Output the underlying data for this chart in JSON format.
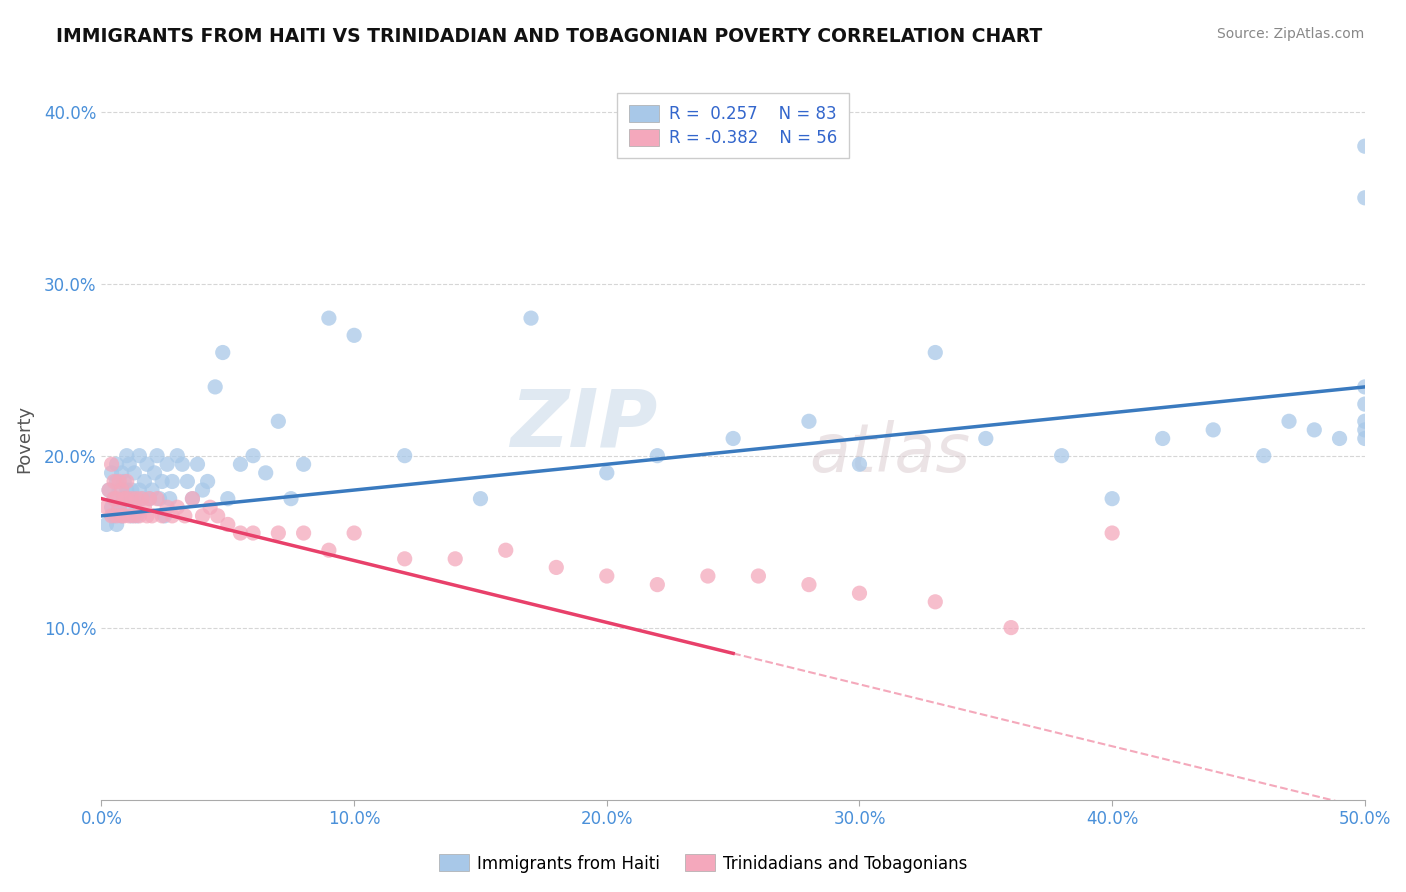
{
  "title": "IMMIGRANTS FROM HAITI VS TRINIDADIAN AND TOBAGONIAN POVERTY CORRELATION CHART",
  "source": "Source: ZipAtlas.com",
  "ylabel": "Poverty",
  "xlim": [
    0.0,
    0.5
  ],
  "ylim": [
    0.0,
    0.42
  ],
  "watermark": "ZIPatlas",
  "blue_color": "#a8c8e8",
  "pink_color": "#f4a8bc",
  "blue_line_color": "#3a7abf",
  "pink_line_color": "#e8406a",
  "haiti_x": [
    0.002,
    0.003,
    0.004,
    0.004,
    0.005,
    0.005,
    0.006,
    0.006,
    0.006,
    0.007,
    0.007,
    0.008,
    0.008,
    0.009,
    0.009,
    0.01,
    0.01,
    0.01,
    0.011,
    0.011,
    0.012,
    0.012,
    0.013,
    0.013,
    0.014,
    0.015,
    0.015,
    0.016,
    0.017,
    0.018,
    0.019,
    0.02,
    0.021,
    0.022,
    0.023,
    0.024,
    0.025,
    0.026,
    0.027,
    0.028,
    0.03,
    0.032,
    0.034,
    0.036,
    0.038,
    0.04,
    0.042,
    0.045,
    0.048,
    0.05,
    0.055,
    0.06,
    0.065,
    0.07,
    0.075,
    0.08,
    0.09,
    0.1,
    0.12,
    0.15,
    0.17,
    0.2,
    0.22,
    0.25,
    0.28,
    0.3,
    0.33,
    0.35,
    0.38,
    0.4,
    0.42,
    0.44,
    0.46,
    0.47,
    0.48,
    0.49,
    0.5,
    0.5,
    0.5,
    0.5,
    0.5,
    0.5,
    0.5
  ],
  "haiti_y": [
    0.16,
    0.18,
    0.17,
    0.19,
    0.175,
    0.165,
    0.16,
    0.185,
    0.195,
    0.17,
    0.18,
    0.165,
    0.19,
    0.175,
    0.185,
    0.17,
    0.18,
    0.2,
    0.175,
    0.195,
    0.18,
    0.165,
    0.175,
    0.19,
    0.165,
    0.18,
    0.2,
    0.175,
    0.185,
    0.195,
    0.175,
    0.18,
    0.19,
    0.2,
    0.175,
    0.185,
    0.165,
    0.195,
    0.175,
    0.185,
    0.2,
    0.195,
    0.185,
    0.175,
    0.195,
    0.18,
    0.185,
    0.24,
    0.26,
    0.175,
    0.195,
    0.2,
    0.19,
    0.22,
    0.175,
    0.195,
    0.28,
    0.27,
    0.2,
    0.175,
    0.28,
    0.19,
    0.2,
    0.21,
    0.22,
    0.195,
    0.26,
    0.21,
    0.2,
    0.175,
    0.21,
    0.215,
    0.2,
    0.22,
    0.215,
    0.21,
    0.23,
    0.24,
    0.21,
    0.215,
    0.22,
    0.35,
    0.38
  ],
  "tnt_x": [
    0.002,
    0.003,
    0.004,
    0.004,
    0.005,
    0.005,
    0.006,
    0.006,
    0.007,
    0.007,
    0.008,
    0.008,
    0.009,
    0.009,
    0.01,
    0.01,
    0.011,
    0.012,
    0.013,
    0.014,
    0.015,
    0.016,
    0.017,
    0.018,
    0.019,
    0.02,
    0.022,
    0.024,
    0.026,
    0.028,
    0.03,
    0.033,
    0.036,
    0.04,
    0.043,
    0.046,
    0.05,
    0.055,
    0.06,
    0.07,
    0.08,
    0.09,
    0.1,
    0.12,
    0.14,
    0.16,
    0.18,
    0.2,
    0.22,
    0.24,
    0.26,
    0.28,
    0.3,
    0.33,
    0.36,
    0.4
  ],
  "tnt_y": [
    0.17,
    0.18,
    0.165,
    0.195,
    0.175,
    0.185,
    0.165,
    0.175,
    0.185,
    0.17,
    0.165,
    0.18,
    0.175,
    0.165,
    0.185,
    0.175,
    0.165,
    0.175,
    0.165,
    0.175,
    0.165,
    0.175,
    0.17,
    0.165,
    0.175,
    0.165,
    0.175,
    0.165,
    0.17,
    0.165,
    0.17,
    0.165,
    0.175,
    0.165,
    0.17,
    0.165,
    0.16,
    0.155,
    0.155,
    0.155,
    0.155,
    0.145,
    0.155,
    0.14,
    0.14,
    0.145,
    0.135,
    0.13,
    0.125,
    0.13,
    0.13,
    0.125,
    0.12,
    0.115,
    0.1,
    0.155
  ],
  "blue_trend_x": [
    0.0,
    0.5
  ],
  "blue_trend_y": [
    0.165,
    0.24
  ],
  "pink_trend_x0": 0.0,
  "pink_trend_x1": 0.25,
  "pink_trend_x2": 0.5,
  "pink_trend_y0": 0.175,
  "pink_trend_y1": 0.085,
  "pink_trend_y2": -0.005
}
